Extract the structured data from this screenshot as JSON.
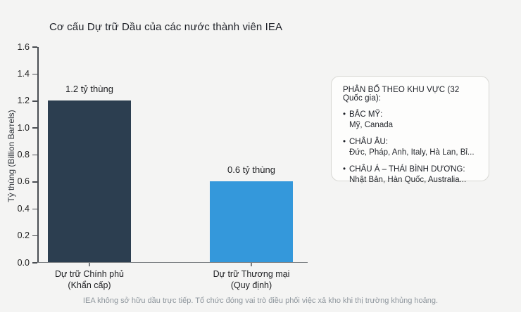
{
  "title": "Cơ cấu Dự trữ Dầu của các nước thành viên IEA",
  "chart_data": {
    "type": "bar",
    "title": "Cơ cấu Dự trữ Dầu của các nước thành viên IEA",
    "xlabel": "",
    "ylabel": "Tỷ thùng (Billion Barrels)",
    "ylim": [
      0,
      1.6
    ],
    "yticks": [
      0.0,
      0.2,
      0.4,
      0.6,
      0.8,
      1.0,
      1.2,
      1.4,
      1.6
    ],
    "ytick_labels": [
      "0.0",
      "0.2",
      "0.4",
      "0.6",
      "0.8",
      "1.0",
      "1.2",
      "1.4",
      "1.6"
    ],
    "grid": "off",
    "categories": [
      "Dự trữ Chính phủ (Khẩn cấp)",
      "Dự trữ Thương mại (Quy định)"
    ],
    "values": [
      1.2,
      0.6
    ],
    "bars": [
      {
        "name": "bar-government-reserve",
        "label_line1": "Dự trữ Chính phủ",
        "label_line2": "(Khẩn cấp)",
        "value": 1.2,
        "value_label": "1.2 tỷ thùng",
        "color": "#2c3e50"
      },
      {
        "name": "bar-commercial-reserve",
        "label_line1": "Dự trữ Thương mại",
        "label_line2": "(Quy định)",
        "value": 0.6,
        "value_label": "0.6 tỷ thùng",
        "color": "#3498db"
      }
    ]
  },
  "legend": {
    "bullet": "•",
    "header": "PHÂN BỔ THEO KHU VỰC (32 Quốc gia):",
    "items": [
      {
        "region": "BẮC MỸ:",
        "countries": "Mỹ, Canada"
      },
      {
        "region": "CHÂU ÂU:",
        "countries": "Đức, Pháp, Anh, Italy, Hà Lan, Bỉ..."
      },
      {
        "region": "CHÂU Á – THÁI BÌNH DƯƠNG:",
        "countries": "Nhật Bản, Hàn Quốc, Australia..."
      }
    ]
  },
  "footer": {
    "note": "IEA không sở hữu dầu trực tiếp. Tổ chức đóng vai trò điều phối việc xả kho khi thị trường khủng hoảng."
  }
}
